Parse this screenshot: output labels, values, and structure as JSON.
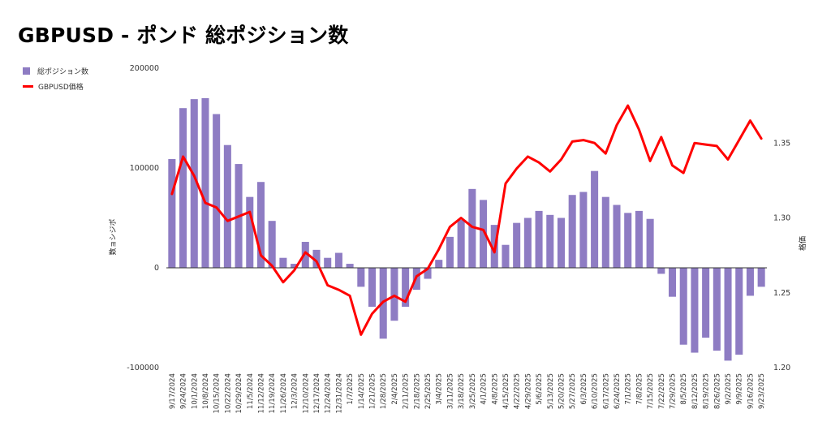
{
  "chart_title": "GBPUSD - ポンド 総ポジション数",
  "legend": [
    {
      "label": "総ポジション数",
      "color": "#8e7cc3"
    },
    {
      "label": "GBPUSD価格",
      "color": "#ff0000"
    }
  ],
  "chart_data": {
    "type": "bar",
    "title": "GBPUSD - ポンド 総ポジション数",
    "categories": [
      "9/17/2024",
      "9/24/2024",
      "10/1/2024",
      "10/8/2024",
      "10/15/2024",
      "10/22/2024",
      "10/29/2024",
      "11/5/2024",
      "11/12/2024",
      "11/19/2024",
      "11/26/2024",
      "12/3/2024",
      "12/10/2024",
      "12/17/2024",
      "12/24/2024",
      "12/31/2024",
      "1/7/2025",
      "1/14/2025",
      "1/21/2025",
      "1/28/2025",
      "2/4/2025",
      "2/11/2025",
      "2/18/2025",
      "2/25/2025",
      "3/4/2025",
      "3/11/2025",
      "3/18/2025",
      "3/25/2025",
      "4/1/2025",
      "4/8/2025",
      "4/15/2025",
      "4/22/2025",
      "4/29/2025",
      "5/6/2025",
      "5/13/2025",
      "5/20/2025",
      "5/27/2025",
      "6/3/2025",
      "6/10/2025",
      "6/17/2025",
      "6/24/2025",
      "7/1/2025",
      "7/8/2025",
      "7/15/2025",
      "7/22/2025",
      "7/29/2025",
      "8/5/2025",
      "8/12/2025",
      "8/19/2025",
      "8/26/2025",
      "9/2/2025",
      "9/9/2025",
      "9/16/2025",
      "9/23/2025"
    ],
    "y_left_label": "数ョシジポ",
    "y_right_label": "格価",
    "y_left_ticks": [
      -100000,
      0,
      100000,
      200000
    ],
    "y_left_tick_labels": [
      "-100000",
      "0",
      "100000",
      "200000"
    ],
    "y_left_range": [
      -100000,
      200000
    ],
    "y_right_ticks": [
      1.2,
      1.25,
      1.3,
      1.35
    ],
    "y_right_tick_labels": [
      "1.20",
      "1.25",
      "1.30",
      "1.35"
    ],
    "y_right_range": [
      1.2,
      1.4
    ],
    "series": [
      {
        "name": "総ポジション数",
        "type": "bar",
        "axis": "left",
        "color": "#8e7cc3",
        "values": [
          109000,
          160000,
          169000,
          170000,
          154000,
          123000,
          104000,
          71000,
          86000,
          47000,
          10000,
          4000,
          26000,
          18000,
          10000,
          15000,
          4000,
          -19000,
          -39000,
          -71000,
          -53000,
          -39000,
          -22000,
          -11000,
          8000,
          31000,
          48000,
          79000,
          68000,
          43000,
          23000,
          45000,
          50000,
          57000,
          53000,
          50000,
          73000,
          76000,
          97000,
          71000,
          63000,
          55000,
          57000,
          49000,
          -6000,
          -29000,
          -77000,
          -85000,
          -70000,
          -83000,
          -93000,
          -87000,
          -28000,
          -19000
        ]
      },
      {
        "name": "GBPUSD価格",
        "type": "line",
        "axis": "right",
        "color": "#ff0000",
        "values": [
          1.316,
          1.341,
          1.328,
          1.31,
          1.307,
          1.298,
          1.301,
          1.304,
          1.275,
          1.268,
          1.257,
          1.265,
          1.277,
          1.271,
          1.255,
          1.252,
          1.248,
          1.222,
          1.236,
          1.244,
          1.248,
          1.244,
          1.261,
          1.266,
          1.279,
          1.294,
          1.3,
          1.294,
          1.292,
          1.277,
          1.323,
          1.333,
          1.341,
          1.337,
          1.331,
          1.339,
          1.351,
          1.352,
          1.35,
          1.343,
          1.362,
          1.375,
          1.359,
          1.338,
          1.354,
          1.335,
          1.33,
          1.35,
          1.349,
          1.348,
          1.339,
          1.352,
          1.365,
          1.353
        ]
      }
    ],
    "grid": false,
    "legend_position": "top-left"
  }
}
